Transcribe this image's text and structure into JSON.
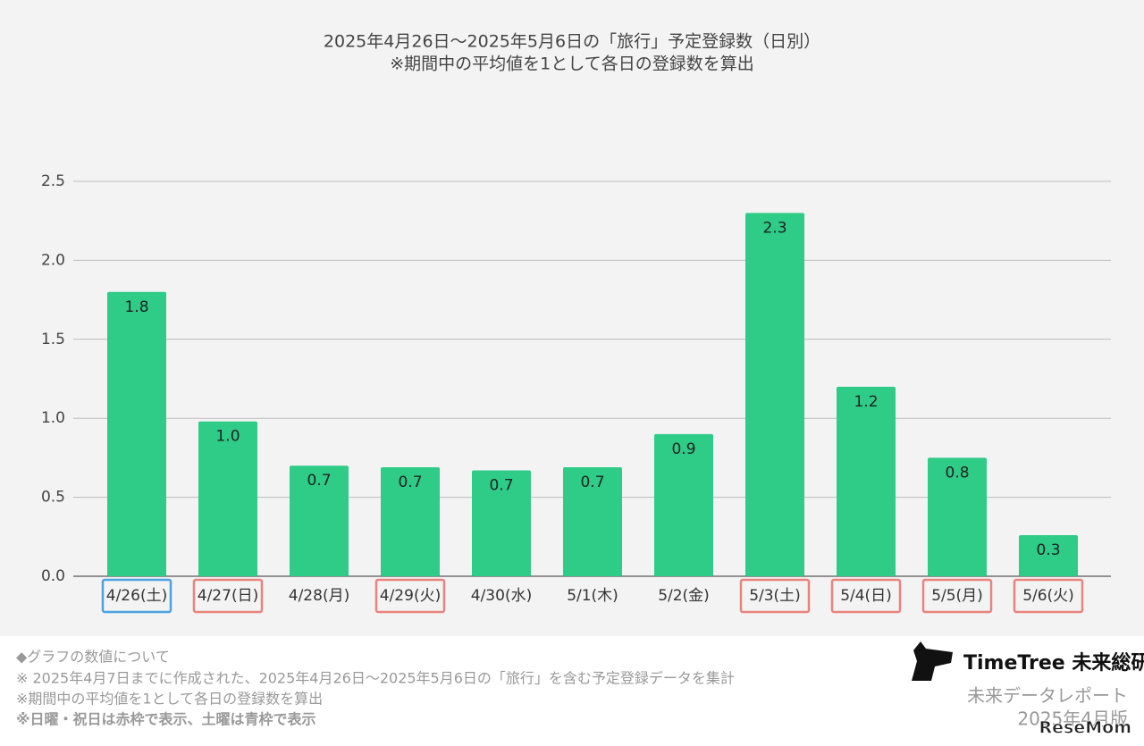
{
  "chart_data": {
    "type": "bar",
    "title": "2025年4月26日〜2025年5月6日の「旅行」予定登録数（日別）",
    "subtitle": "※期間中の平均値を1として各日の登録数を算出",
    "categories": [
      "4/26(土)",
      "4/27(日)",
      "4/28(月)",
      "4/29(火)",
      "4/30(水)",
      "5/1(木)",
      "5/2(金)",
      "5/3(土)",
      "5/4(日)",
      "5/5(月)",
      "5/6(火)"
    ],
    "values": [
      1.8,
      0.98,
      0.7,
      0.69,
      0.67,
      0.69,
      0.9,
      2.3,
      1.2,
      0.75,
      0.26
    ],
    "value_labels": [
      "1.8",
      "1.0",
      "0.7",
      "0.7",
      "0.7",
      "0.7",
      "0.9",
      "2.3",
      "1.2",
      "0.8",
      "0.3"
    ],
    "color": "#2ecc87",
    "category_frames": [
      "#4aa3df",
      "#e8837d",
      null,
      "#e8837d",
      null,
      null,
      null,
      "#e8837d",
      "#e8837d",
      "#e8837d",
      "#e8837d"
    ],
    "ylim": [
      0,
      2.5
    ],
    "yticks": [
      {
        "value": 0,
        "label": "0.0"
      },
      {
        "value": 0.5,
        "label": "0.5"
      },
      {
        "value": 1,
        "label": "1.0"
      },
      {
        "value": 1.5,
        "label": "1.5"
      },
      {
        "value": 2,
        "label": "2.0"
      },
      {
        "value": 2.5,
        "label": "2.5"
      }
    ],
    "grid": true
  },
  "footer": {
    "notes": [
      "◆グラフの数値について",
      "※ 2025年4月7日までに作成された、2025年4月26日〜2025年5月6日の「旅行」を含む予定登録データを集計",
      "※期間中の平均値を1として各日の登録数を算出",
      "※日曜・祝日は赤枠で表示、土曜は青枠で表示"
    ],
    "brand": "TimeTree 未来総研",
    "report": "未来データレポート",
    "edition": "2025年4月版",
    "watermark": "ReseMom"
  }
}
